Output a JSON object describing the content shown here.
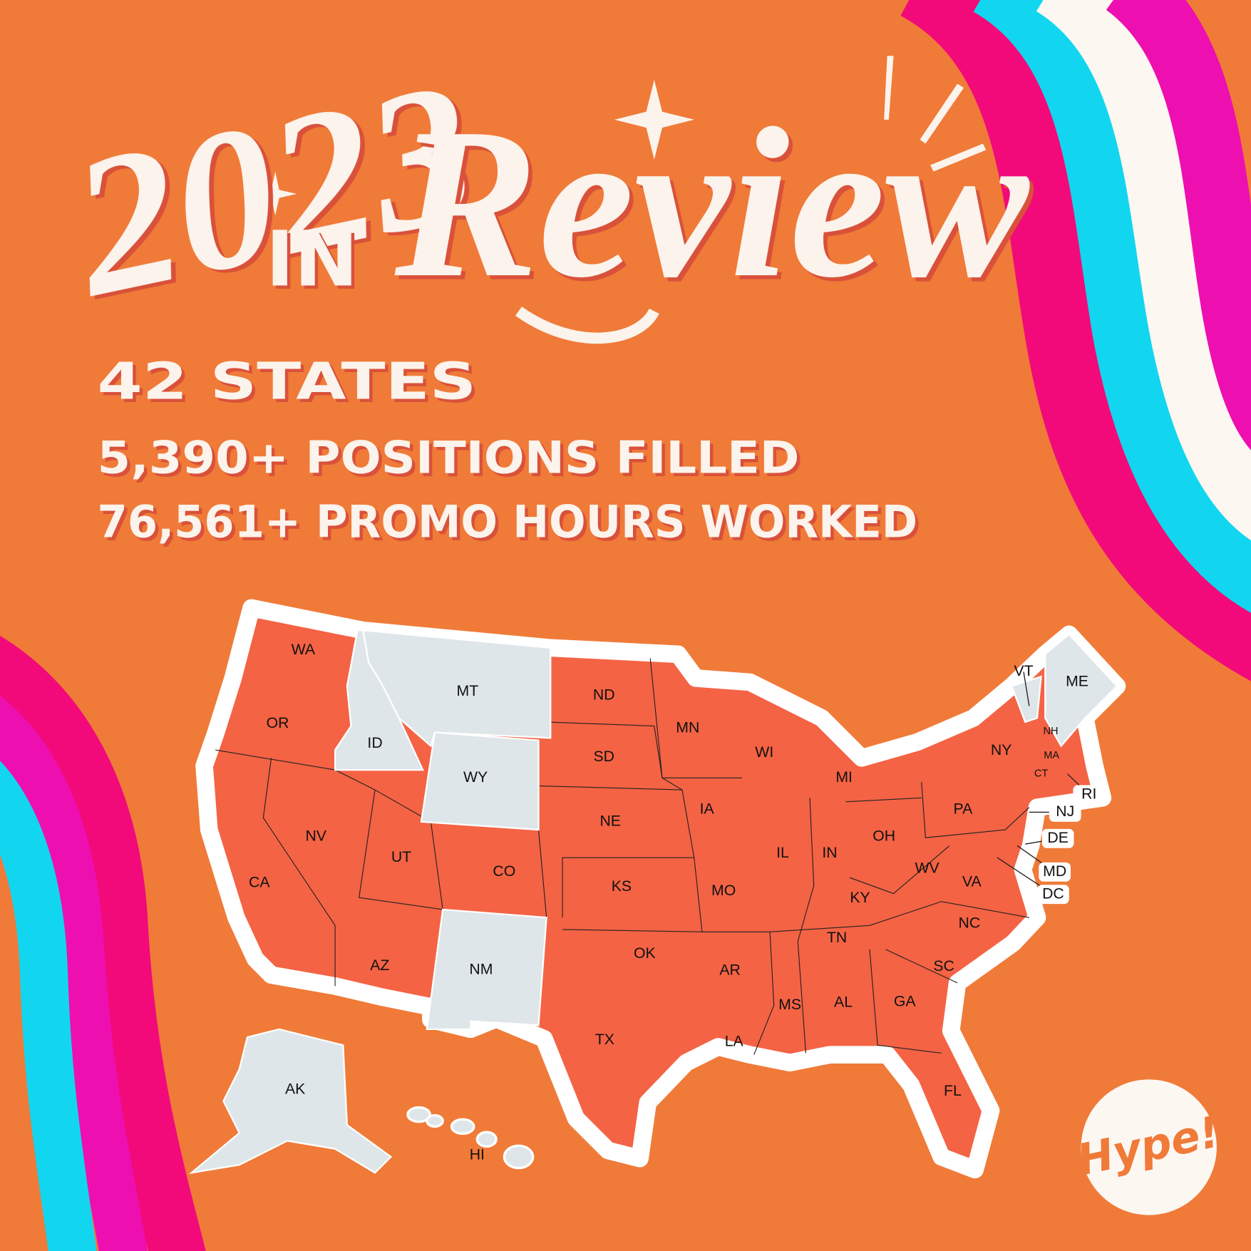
{
  "title": {
    "year": "2023",
    "in": "IN",
    "review": "Review"
  },
  "stats": [
    "42 STATES",
    "5,390+ POSITIONS FILLED",
    "76,561+ PROMO HOURS WORKED"
  ],
  "map": {
    "worked": {
      "color": "#f46344",
      "states": [
        "WA",
        "OR",
        "CA",
        "NV",
        "UT",
        "AZ",
        "CO",
        "ND",
        "SD",
        "NE",
        "KS",
        "OK",
        "TX",
        "MN",
        "IA",
        "MO",
        "AR",
        "LA",
        "WI",
        "IL",
        "MI",
        "IN",
        "OH",
        "KY",
        "TN",
        "MS",
        "AL",
        "GA",
        "FL",
        "SC",
        "NC",
        "VA",
        "WV",
        "PA",
        "NY",
        "NJ",
        "DE",
        "MD",
        "DC",
        "CT",
        "RI",
        "MA",
        "NH"
      ]
    },
    "not_worked": {
      "color": "#dfe6ea",
      "states": [
        "MT",
        "ID",
        "WY",
        "NM",
        "VT",
        "ME",
        "AK",
        "HI"
      ]
    }
  },
  "logo": "Hype!"
}
